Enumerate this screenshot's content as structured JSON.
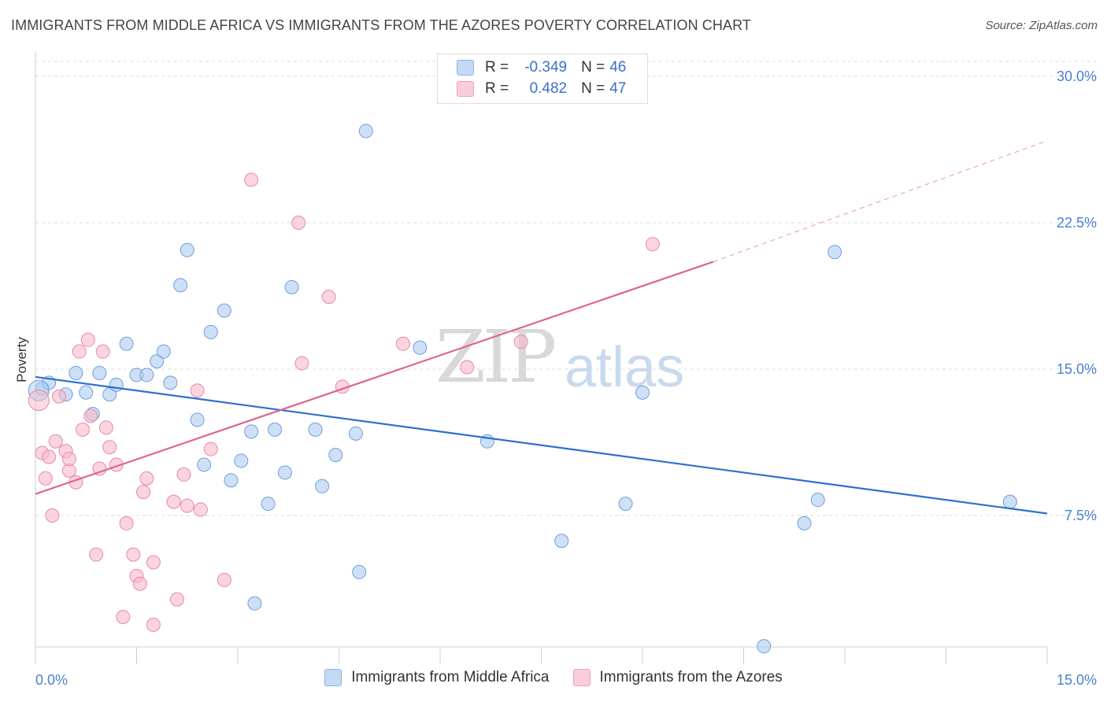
{
  "header": {
    "title": "IMMIGRANTS FROM MIDDLE AFRICA VS IMMIGRANTS FROM THE AZORES POVERTY CORRELATION CHART",
    "source": "Source: ZipAtlas.com"
  },
  "watermark": {
    "zip": "ZIP",
    "atlas": "atlas"
  },
  "legend": {
    "rows": [
      {
        "r_label": "R =",
        "r_value": "-0.349",
        "n_label": "N =",
        "n_value": "46",
        "color": "#aecbf0"
      },
      {
        "r_label": "R =",
        "r_value": "0.482",
        "n_label": "N =",
        "n_value": "47",
        "color": "#f6b8c9"
      }
    ]
  },
  "bottom_legend": [
    {
      "label": "Immigrants from Middle Africa",
      "color": "#aecbf0"
    },
    {
      "label": "Immigrants from the Azores",
      "color": "#f6b8c9"
    }
  ],
  "chart_data": {
    "type": "scatter",
    "title": "IMMIGRANTS FROM MIDDLE AFRICA VS IMMIGRANTS FROM THE AZORES POVERTY CORRELATION CHART",
    "xlabel": "",
    "ylabel": "Poverty",
    "xlim": [
      0,
      15
    ],
    "ylim": [
      0,
      31
    ],
    "x_ticks": [
      "0.0%",
      "15.0%"
    ],
    "y_ticks": [
      {
        "value": 7.5,
        "label": "7.5%"
      },
      {
        "value": 15,
        "label": "15.0%"
      },
      {
        "value": 22.5,
        "label": "22.5%"
      },
      {
        "value": 30,
        "label": "30.0%"
      }
    ],
    "grid": true,
    "series": [
      {
        "name": "Immigrants from Middle Africa",
        "color": "#aecbf0",
        "stroke": "#6f9fdc",
        "trend_color": "#2f6fd0",
        "trend": {
          "x": [
            0,
            15
          ],
          "y": [
            14.6,
            7.6
          ]
        },
        "points": [
          [
            0.1,
            14.0
          ],
          [
            0.2,
            14.3
          ],
          [
            0.45,
            13.7
          ],
          [
            0.6,
            14.8
          ],
          [
            0.75,
            13.8
          ],
          [
            0.85,
            12.7
          ],
          [
            0.95,
            14.8
          ],
          [
            1.1,
            13.7
          ],
          [
            1.2,
            14.2
          ],
          [
            1.35,
            16.3
          ],
          [
            1.5,
            14.7
          ],
          [
            1.65,
            14.7
          ],
          [
            1.8,
            15.4
          ],
          [
            1.9,
            15.9
          ],
          [
            2.0,
            14.3
          ],
          [
            2.15,
            19.3
          ],
          [
            2.25,
            21.1
          ],
          [
            2.4,
            12.4
          ],
          [
            2.5,
            10.1
          ],
          [
            2.6,
            16.9
          ],
          [
            2.8,
            18.0
          ],
          [
            2.9,
            9.3
          ],
          [
            3.05,
            10.3
          ],
          [
            3.2,
            11.8
          ],
          [
            3.25,
            3.0
          ],
          [
            3.45,
            8.1
          ],
          [
            3.55,
            11.9
          ],
          [
            3.7,
            9.7
          ],
          [
            3.8,
            19.2
          ],
          [
            4.15,
            11.9
          ],
          [
            4.25,
            9.0
          ],
          [
            4.45,
            10.6
          ],
          [
            4.75,
            11.7
          ],
          [
            4.8,
            4.6
          ],
          [
            4.9,
            27.2
          ],
          [
            5.7,
            16.1
          ],
          [
            6.7,
            11.3
          ],
          [
            7.8,
            6.2
          ],
          [
            8.75,
            8.1
          ],
          [
            9.0,
            13.8
          ],
          [
            10.8,
            0.8
          ],
          [
            11.4,
            7.1
          ],
          [
            11.6,
            8.3
          ],
          [
            11.85,
            21.0
          ],
          [
            14.45,
            8.2
          ],
          [
            0.05,
            13.9
          ]
        ]
      },
      {
        "name": "Immigrants from the Azores",
        "color": "#f6b8c9",
        "stroke": "#e88aa6",
        "trend_color": "#e0648c",
        "trend": {
          "x": [
            0,
            10.05
          ],
          "y": [
            8.6,
            20.5
          ]
        },
        "trend_ext": {
          "x": [
            10.05,
            15
          ],
          "y": [
            20.5,
            26.7
          ]
        },
        "points": [
          [
            0.05,
            13.4
          ],
          [
            0.1,
            10.7
          ],
          [
            0.15,
            9.4
          ],
          [
            0.2,
            10.5
          ],
          [
            0.25,
            7.5
          ],
          [
            0.3,
            11.3
          ],
          [
            0.35,
            13.6
          ],
          [
            0.45,
            10.8
          ],
          [
            0.5,
            9.8
          ],
          [
            0.5,
            10.4
          ],
          [
            0.6,
            9.2
          ],
          [
            0.65,
            15.9
          ],
          [
            0.7,
            11.9
          ],
          [
            0.78,
            16.5
          ],
          [
            0.82,
            12.6
          ],
          [
            0.9,
            5.5
          ],
          [
            0.95,
            9.9
          ],
          [
            1.0,
            15.9
          ],
          [
            1.05,
            12.0
          ],
          [
            1.1,
            11.0
          ],
          [
            1.2,
            10.1
          ],
          [
            1.3,
            2.3
          ],
          [
            1.35,
            7.1
          ],
          [
            1.45,
            5.5
          ],
          [
            1.5,
            4.4
          ],
          [
            1.55,
            4.0
          ],
          [
            1.6,
            8.7
          ],
          [
            1.65,
            9.4
          ],
          [
            1.75,
            5.1
          ],
          [
            1.75,
            1.9
          ],
          [
            2.05,
            8.2
          ],
          [
            2.1,
            3.2
          ],
          [
            2.2,
            9.6
          ],
          [
            2.25,
            8.0
          ],
          [
            2.4,
            13.9
          ],
          [
            2.45,
            7.8
          ],
          [
            2.6,
            10.9
          ],
          [
            2.8,
            4.2
          ],
          [
            3.2,
            24.7
          ],
          [
            3.9,
            22.5
          ],
          [
            3.95,
            15.3
          ],
          [
            4.35,
            18.7
          ],
          [
            4.55,
            14.1
          ],
          [
            5.45,
            16.3
          ],
          [
            6.4,
            15.1
          ],
          [
            7.2,
            16.4
          ],
          [
            9.15,
            21.4
          ]
        ]
      }
    ]
  }
}
